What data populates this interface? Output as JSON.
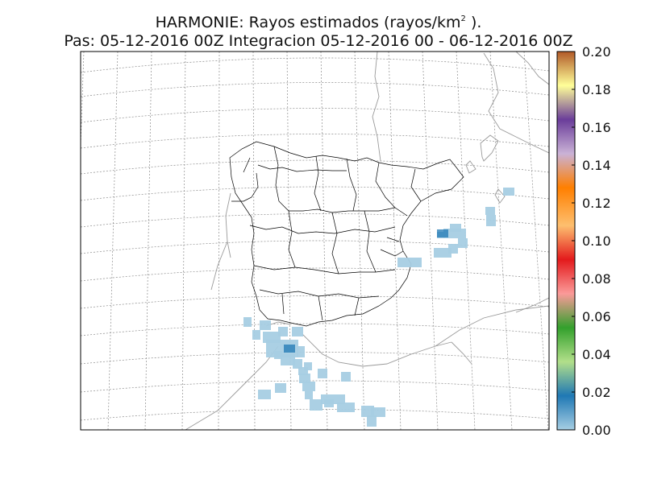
{
  "title": {
    "line1_prefix": "HARMONIE: Rayos estimados  (rayos/km",
    "line1_sup": "2",
    "line1_suffix": " ).",
    "line2": "Pas: 05-12-2016 00Z Integracion 05-12-2016 00 - 06-12-2016 00Z"
  },
  "colorbar": {
    "min": 0.0,
    "max": 0.2,
    "tick_labels": [
      "0.00",
      "0.02",
      "0.04",
      "0.06",
      "0.08",
      "0.10",
      "0.12",
      "0.14",
      "0.16",
      "0.18",
      "0.20"
    ],
    "colors": [
      "#a6cee3",
      "#1f78b4",
      "#b2df8a",
      "#33a02c",
      "#fb9a99",
      "#e31a1c",
      "#fdbf6f",
      "#ff7f00",
      "#cab2d6",
      "#6a3d9a",
      "#ffff99",
      "#b15928"
    ]
  },
  "colors": {
    "low": "#a6cee3",
    "medium": "#1f78b4",
    "coastline": "#9a9a9a",
    "borders": "#000000",
    "grid": "#8c8c8c"
  }
}
